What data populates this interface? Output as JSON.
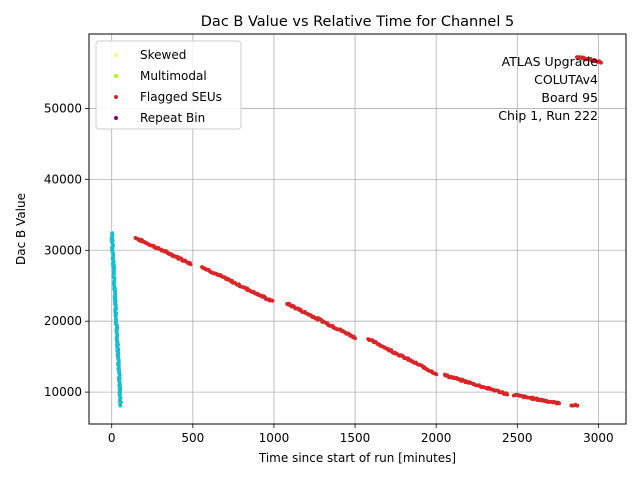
{
  "chart_data": {
    "type": "scatter",
    "title": "Dac B Value vs Relative Time for Channel 5",
    "xlabel": "Time since start of run [minutes]",
    "ylabel": "Dac B Value",
    "xlim": [
      -140,
      3170
    ],
    "ylim": [
      5500,
      60500
    ],
    "xticks": [
      0,
      500,
      1000,
      1500,
      2000,
      2500,
      3000
    ],
    "yticks": [
      10000,
      20000,
      30000,
      40000,
      50000
    ],
    "grid": true,
    "legend_position": "top-left",
    "annotation": [
      "ATLAS Upgrade",
      "COLUTAv4",
      "Board 95",
      "Chip 1, Run 222"
    ],
    "series": [
      {
        "name": "Skewed",
        "color": "#ffff66",
        "segments": [
          {
            "x": [
              0,
              5
            ],
            "y": [
              32500,
              31500
            ],
            "n": 6
          }
        ]
      },
      {
        "name": "Multimodal",
        "color": "#aaff00",
        "segments": []
      },
      {
        "name": "Flagged SEUs",
        "color": "#d62728",
        "segments": [
          {
            "x": [
              150,
              490
            ],
            "y": [
              31700,
              28100
            ],
            "n": 60
          },
          {
            "x": [
              560,
              990
            ],
            "y": [
              27600,
              22800
            ],
            "n": 70
          },
          {
            "x": [
              1080,
              1500
            ],
            "y": [
              22500,
              17700
            ],
            "n": 70
          },
          {
            "x": [
              1580,
              2000
            ],
            "y": [
              17500,
              12600
            ],
            "n": 70
          },
          {
            "x": [
              2050,
              2440
            ],
            "y": [
              12400,
              9700
            ],
            "n": 60
          },
          {
            "x": [
              2480,
              2760
            ],
            "y": [
              9600,
              8400
            ],
            "n": 45
          },
          {
            "x": [
              2830,
              2870
            ],
            "y": [
              8200,
              8100
            ],
            "n": 6
          },
          {
            "x": [
              2870,
              3020
            ],
            "y": [
              57300,
              56500
            ],
            "n": 20
          }
        ]
      },
      {
        "name": "Repeat Bin",
        "color": "#800080",
        "segments": []
      },
      {
        "name": "",
        "color": "#17becf",
        "segments": [
          {
            "x": [
              0,
              55
            ],
            "y": [
              32500,
              8200
            ],
            "n": 160
          }
        ]
      }
    ]
  }
}
